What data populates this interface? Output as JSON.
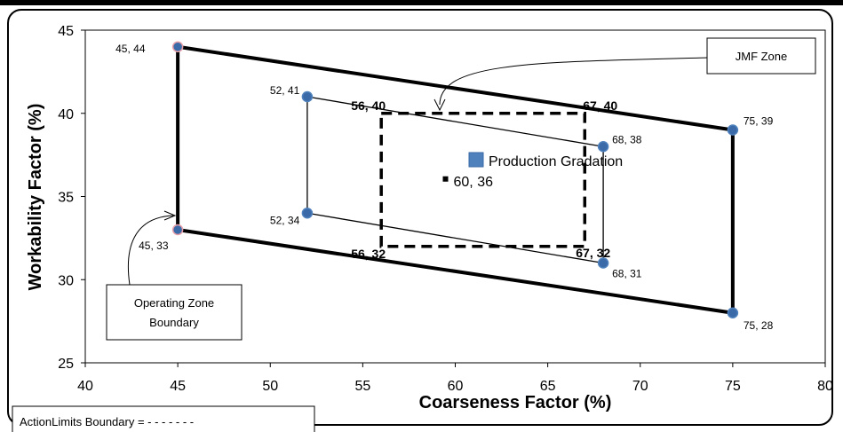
{
  "chart_data": {
    "type": "scatter",
    "xlabel": "Coarseness Factor (%)",
    "ylabel": "Workability Factor (%)",
    "xlim": [
      40,
      80
    ],
    "ylim": [
      25,
      45
    ],
    "xticks": [
      "40",
      "45",
      "50",
      "55",
      "60",
      "65",
      "70",
      "75",
      "80"
    ],
    "yticks": [
      "25",
      "30",
      "35",
      "40",
      "45"
    ],
    "grid": false,
    "series": [
      {
        "role": "operating-zone-boundary",
        "points": [
          [
            45,
            44
          ],
          [
            75,
            39
          ],
          [
            75,
            28
          ],
          [
            45,
            33
          ]
        ],
        "labels": [
          "45, 44",
          "75, 39",
          "75, 28",
          "45, 33"
        ]
      },
      {
        "role": "jmf-zone",
        "points": [
          [
            52,
            41
          ],
          [
            68,
            38
          ],
          [
            68,
            31
          ],
          [
            52,
            34
          ]
        ],
        "labels": [
          "52, 41",
          "68, 38",
          "68, 31",
          "52, 34"
        ]
      },
      {
        "role": "action-limits-boundary",
        "points": [
          [
            56,
            40
          ],
          [
            67,
            40
          ],
          [
            67,
            32
          ],
          [
            56,
            32
          ]
        ],
        "labels": [
          "56, 40",
          "67, 40",
          "67, 32",
          "56, 32"
        ]
      },
      {
        "name": "Production Gradation",
        "points": [
          [
            60,
            36
          ]
        ],
        "labels": [
          "60, 36"
        ]
      }
    ],
    "annotations": {
      "jmf_zone": "JMF Zone",
      "operating_zone_line1": "Operating Zone",
      "operating_zone_line2": "Boundary",
      "action_limits": "ActionLimits Boundary = - - - - - - -"
    }
  }
}
